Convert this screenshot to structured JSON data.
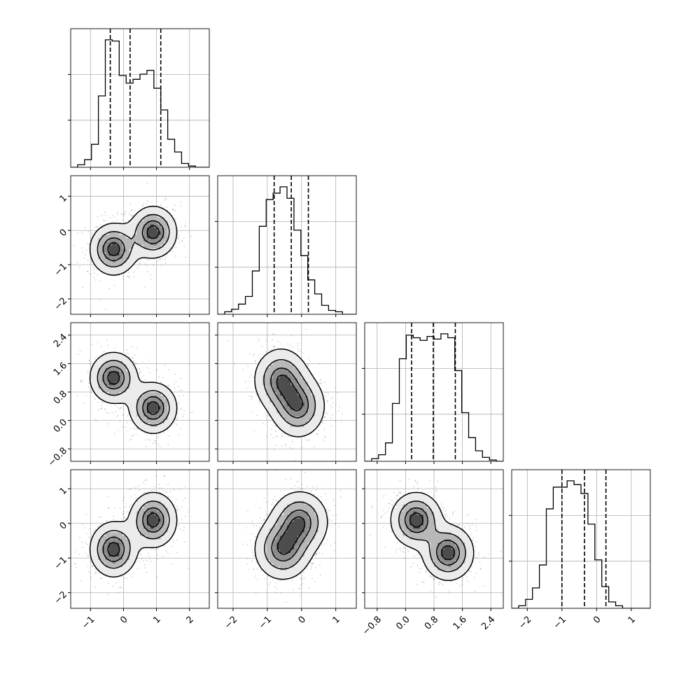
{
  "chart_data": {
    "type": "corner",
    "n_params": 4,
    "grid": true,
    "quantile_lines": "dashed",
    "colors": {
      "hist": "#000000",
      "fill_dark": "#000000",
      "points": "#808080"
    },
    "ranges": [
      [
        -1.6,
        2.6
      ],
      [
        -2.45,
        1.6
      ],
      [
        -1.15,
        2.75
      ],
      [
        -2.45,
        1.55
      ]
    ],
    "ticks": [
      {
        "values": [
          -1,
          0,
          1,
          2
        ],
        "labels": [
          "−1",
          "0",
          "1",
          "2"
        ]
      },
      {
        "values": [
          -2,
          -1,
          0,
          1
        ],
        "labels": [
          "−2",
          "−1",
          "0",
          "1"
        ]
      },
      {
        "values": [
          -0.8,
          0.0,
          0.8,
          1.6,
          2.4
        ],
        "labels": [
          "−0.8",
          "0.0",
          "0.8",
          "1.6",
          "2.4"
        ]
      },
      {
        "values": [
          -2,
          -1,
          0,
          1
        ],
        "labels": [
          "−2",
          "−1",
          "0",
          "1"
        ]
      }
    ],
    "marginals": [
      {
        "param": 0,
        "bin_edges_range": [
          -1.6,
          2.6
        ],
        "bins": 20,
        "counts": [
          0,
          0.02,
          0.06,
          0.18,
          0.56,
          1.0,
          0.99,
          0.72,
          0.66,
          0.69,
          0.73,
          0.76,
          0.62,
          0.45,
          0.22,
          0.12,
          0.03,
          0.01,
          0,
          0
        ],
        "quantiles": [
          -0.4,
          0.2,
          1.13
        ]
      },
      {
        "param": 1,
        "bin_edges_range": [
          -2.45,
          1.6
        ],
        "bins": 20,
        "counts": [
          0,
          0.02,
          0.04,
          0.08,
          0.14,
          0.34,
          0.69,
          0.9,
          0.95,
          1.0,
          0.91,
          0.66,
          0.46,
          0.27,
          0.16,
          0.07,
          0.03,
          0.02,
          0,
          0
        ],
        "quantiles": [
          -0.8,
          -0.3,
          0.2
        ]
      },
      {
        "param": 2,
        "bin_edges_range": [
          -1.15,
          2.75
        ],
        "bins": 20,
        "counts": [
          0,
          0.02,
          0.05,
          0.14,
          0.44,
          0.78,
          0.96,
          0.94,
          0.92,
          0.95,
          0.93,
          0.97,
          0.94,
          0.69,
          0.37,
          0.18,
          0.08,
          0.03,
          0.01,
          0
        ],
        "quantiles": [
          0.17,
          0.78,
          1.4
        ]
      },
      {
        "param": 3,
        "bin_edges_range": [
          -2.45,
          1.55
        ],
        "bins": 20,
        "counts": [
          0,
          0.02,
          0.07,
          0.16,
          0.34,
          0.78,
          0.95,
          0.95,
          1.0,
          0.97,
          0.9,
          0.66,
          0.38,
          0.17,
          0.05,
          0.02,
          0,
          0,
          0,
          0
        ],
        "quantiles": [
          -1.0,
          -0.35,
          0.27
        ]
      }
    ],
    "mixture": [
      {
        "weight": 0.5,
        "mean": [
          -0.3,
          -0.55,
          1.2,
          0.0,
          -0.75,
          0.1
        ],
        "sigma": [
          0.35,
          0.42,
          0.36,
          0.38,
          0.42,
          0.42
        ]
      },
      {
        "weight": 0.5,
        "mean": [
          0.9,
          -0.05,
          0.35,
          -0.6,
          -0.85,
          0.4
        ],
        "sigma": [
          0.38,
          0.42,
          0.36,
          0.5,
          0.45,
          0.4
        ]
      }
    ],
    "contour_levels": [
      0.118,
      0.393,
      0.675,
      0.864
    ],
    "n_samples": 1800
  }
}
